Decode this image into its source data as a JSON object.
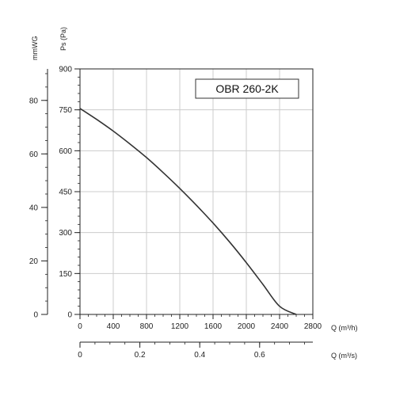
{
  "chart_data": {
    "type": "line",
    "title": "",
    "model_label": "OBR 260-2K",
    "x_axis": {
      "label": "Q (m³/h)",
      "range": [
        0,
        2800
      ],
      "ticks": [
        0,
        400,
        800,
        1200,
        1600,
        2000,
        2400,
        2800
      ],
      "tick_labels": [
        "0",
        "400",
        "800",
        "1200",
        "1600",
        "2000",
        "2400",
        "2800"
      ],
      "minor_step": 100
    },
    "x2_axis": {
      "label": "Q (m³/s)",
      "range": [
        0,
        0.7778
      ],
      "ticks": [
        0,
        0.2,
        0.4,
        0.6
      ],
      "tick_labels": [
        "0",
        "0.2",
        "0.4",
        "0.6"
      ],
      "minor_step": 0.05
    },
    "y_axis": {
      "label": "Ps (Pa)",
      "range": [
        0,
        900
      ],
      "ticks": [
        0,
        150,
        300,
        450,
        600,
        750,
        900
      ],
      "tick_labels": [
        "0",
        "150",
        "300",
        "450",
        "600",
        "750",
        "900"
      ],
      "minor_step": 30
    },
    "y2_axis": {
      "label": "mmWG",
      "range": [
        0,
        91.77
      ],
      "ticks": [
        0,
        20,
        40,
        60,
        80
      ],
      "tick_labels": [
        "0",
        "20",
        "40",
        "60",
        "80"
      ],
      "minor_step": 5
    },
    "grid": true,
    "series": [
      {
        "x": [
          0,
          200,
          400,
          600,
          800,
          1000,
          1200,
          1400,
          1600,
          1800,
          2000,
          2200,
          2400,
          2600
        ],
        "y": [
          755,
          715,
          672,
          625,
          575,
          520,
          462,
          400,
          335,
          265,
          190,
          110,
          30,
          0
        ]
      }
    ],
    "colors": {
      "curve": "#333333",
      "grid": "#cccccc",
      "axis": "#222222"
    }
  }
}
